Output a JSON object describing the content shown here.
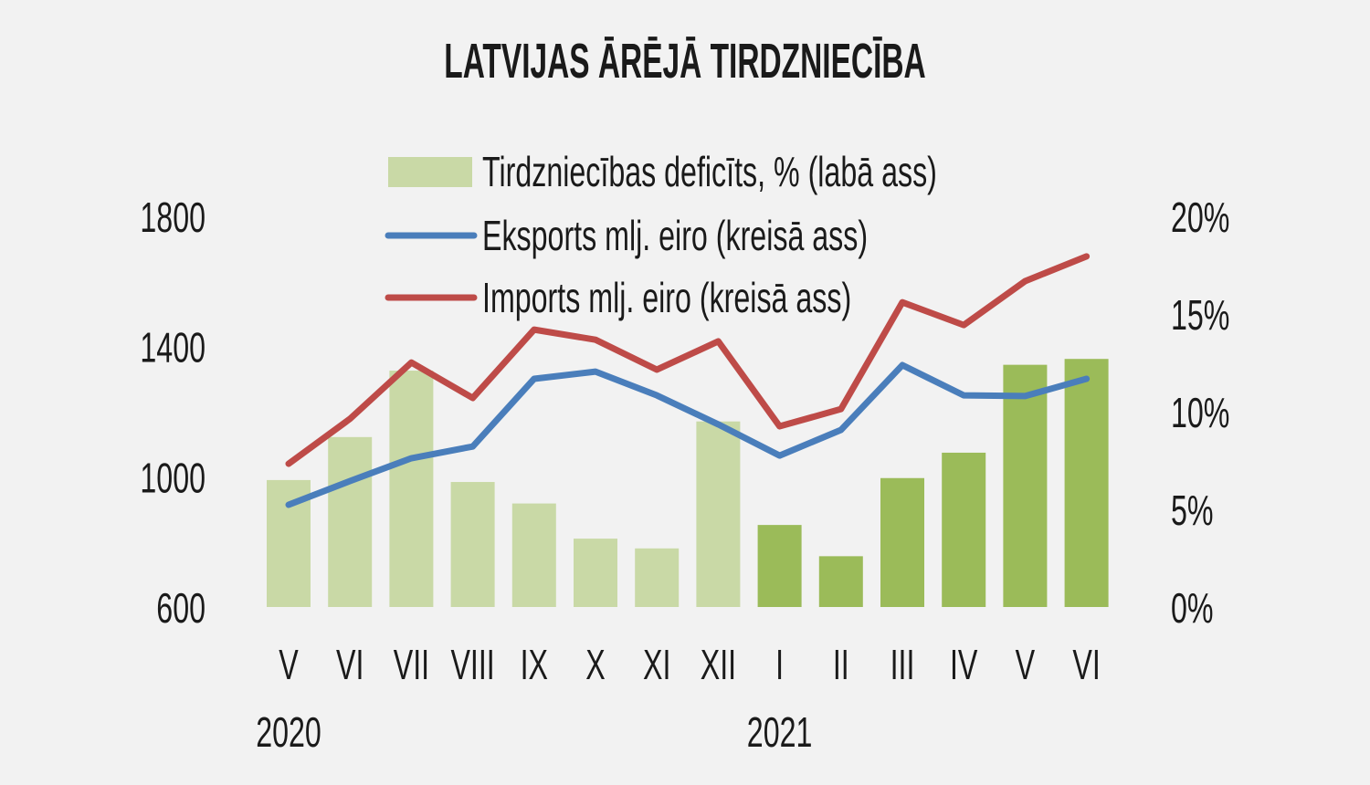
{
  "chart_data": {
    "type": "bar+line",
    "title": "LATVIJAS ĀRĒJĀ TIRDZNIECĪBA",
    "categories": [
      "V",
      "VI",
      "VII",
      "VIII",
      "IX",
      "X",
      "XI",
      "XII",
      "I",
      "II",
      "III",
      "IV",
      "V",
      "VI"
    ],
    "year_labels": [
      {
        "label": "2020",
        "category_index": 0
      },
      {
        "label": "2021",
        "category_index": 8
      }
    ],
    "left_axis": {
      "ticks": [
        "600",
        "1000",
        "1400",
        "1800"
      ],
      "range": [
        600,
        1800
      ]
    },
    "right_axis": {
      "ticks": [
        "0%",
        "5%",
        "10%",
        "15%",
        "20%"
      ],
      "range": [
        0,
        20
      ]
    },
    "grid": false,
    "legend_position": "top",
    "series": [
      {
        "name": "Tirdzniecības deficīts, % (labā ass)",
        "type": "bar",
        "axis": "right",
        "color": "#c9d9a6",
        "highlight_color": "#9bbb59",
        "highlight_from_index": 8,
        "values": [
          6.5,
          8.7,
          12.1,
          6.4,
          5.3,
          3.5,
          3.0,
          9.5,
          4.2,
          2.6,
          6.6,
          7.9,
          12.4,
          12.7
        ]
      },
      {
        "name": "Eksports mlj. eiro (kreisā ass)",
        "type": "line",
        "axis": "left",
        "color": "#4a7ebb",
        "values": [
          914,
          987,
          1057,
          1093,
          1301,
          1323,
          1250,
          1161,
          1065,
          1144,
          1343,
          1250,
          1248,
          1301
        ]
      },
      {
        "name": "Imports mlj. eiro (kreisā ass)",
        "type": "line",
        "axis": "left",
        "color": "#be4b48",
        "values": [
          1040,
          1178,
          1351,
          1242,
          1452,
          1421,
          1329,
          1416,
          1155,
          1208,
          1536,
          1466,
          1601,
          1677
        ]
      }
    ]
  }
}
